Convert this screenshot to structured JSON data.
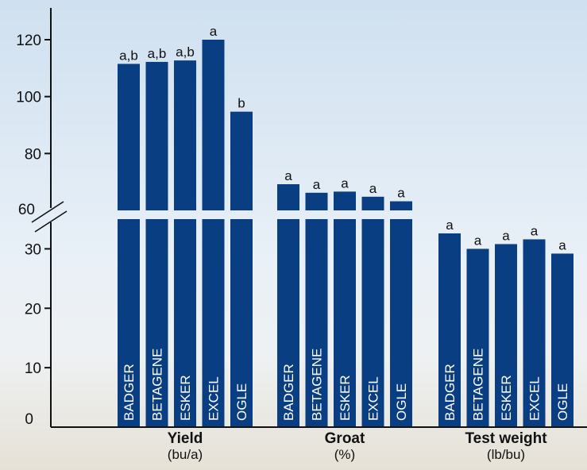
{
  "chart_data": {
    "type": "bar",
    "colors": {
      "bar": "#0a3e83",
      "axis": "#111111"
    },
    "y_axis_break": {
      "below": 35,
      "above": 60
    },
    "y_ticks_lower": [
      0,
      10,
      20,
      30
    ],
    "y_ticks_upper": [
      60,
      80,
      100,
      120
    ],
    "groups": [
      {
        "title": "Yield",
        "unit": "(bu/a)",
        "bars": [
          {
            "category": "BADGER",
            "value": 111.5,
            "letter": "a,b"
          },
          {
            "category": "BETAGENE",
            "value": 112.2,
            "letter": "a,b"
          },
          {
            "category": "ESKER",
            "value": 112.7,
            "letter": "a,b"
          },
          {
            "category": "EXCEL",
            "value": 120.0,
            "letter": "a"
          },
          {
            "category": "OGLE",
            "value": 94.7,
            "letter": "b"
          }
        ]
      },
      {
        "title": "Groat",
        "unit": "(%)",
        "bars": [
          {
            "category": "BADGER",
            "value": 69.2,
            "letter": "a"
          },
          {
            "category": "BETAGENE",
            "value": 66.2,
            "letter": "a"
          },
          {
            "category": "ESKER",
            "value": 66.6,
            "letter": "a"
          },
          {
            "category": "EXCEL",
            "value": 64.8,
            "letter": "a"
          },
          {
            "category": "OGLE",
            "value": 63.2,
            "letter": "a"
          }
        ]
      },
      {
        "title": "Test weight",
        "unit": "(lb/bu)",
        "bars": [
          {
            "category": "BADGER",
            "value": 32.6,
            "letter": "a"
          },
          {
            "category": "BETAGENE",
            "value": 30.0,
            "letter": "a"
          },
          {
            "category": "ESKER",
            "value": 30.8,
            "letter": "a"
          },
          {
            "category": "EXCEL",
            "value": 31.6,
            "letter": "a"
          },
          {
            "category": "OGLE",
            "value": 29.2,
            "letter": "a"
          }
        ]
      }
    ]
  }
}
